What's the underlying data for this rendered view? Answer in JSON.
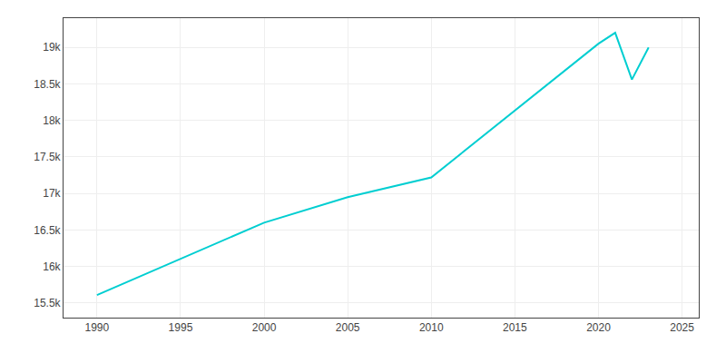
{
  "chart_data": {
    "type": "line",
    "x": [
      1990,
      2000,
      2005,
      2010,
      2020,
      2021,
      2022,
      2023
    ],
    "values": [
      15610,
      16600,
      16950,
      17220,
      19050,
      19200,
      18560,
      19000
    ],
    "color": "#00CED1",
    "xlim": [
      1988,
      2026
    ],
    "ylim": [
      15300,
      19400
    ],
    "xticks": [
      1990,
      1995,
      2000,
      2005,
      2010,
      2015,
      2020,
      2025
    ],
    "yticks": [
      {
        "value": 15500,
        "label": "15.5k"
      },
      {
        "value": 16000,
        "label": "16k"
      },
      {
        "value": 16500,
        "label": "16.5k"
      },
      {
        "value": 17000,
        "label": "17k"
      },
      {
        "value": 17500,
        "label": "17.5k"
      },
      {
        "value": 18000,
        "label": "18k"
      },
      {
        "value": 18500,
        "label": "18.5k"
      },
      {
        "value": 19000,
        "label": "19k"
      }
    ],
    "grid": true
  }
}
